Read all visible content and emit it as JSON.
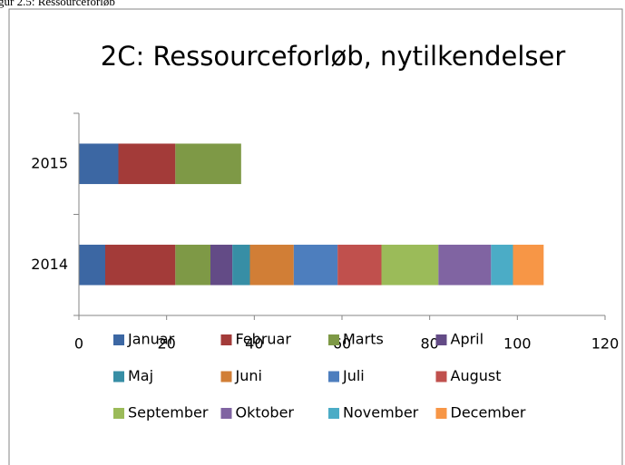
{
  "caption": "gur 2.5: Ressourceforløb",
  "chart_data": {
    "type": "stacked-barh",
    "title": "2C: Ressourceforløb, nytilkendelser",
    "categories": [
      "2014",
      "2015"
    ],
    "series": [
      {
        "name": "Januar",
        "color": "#3c67a3",
        "values": [
          6,
          9
        ]
      },
      {
        "name": "Februar",
        "color": "#a33b39",
        "values": [
          16,
          13
        ]
      },
      {
        "name": "Marts",
        "color": "#7e9946",
        "values": [
          8,
          15
        ]
      },
      {
        "name": "April",
        "color": "#634b86",
        "values": [
          5,
          null
        ]
      },
      {
        "name": "Maj",
        "color": "#378ea5",
        "values": [
          4,
          null
        ]
      },
      {
        "name": "Juni",
        "color": "#d17e36",
        "values": [
          10,
          null
        ]
      },
      {
        "name": "Juli",
        "color": "#4d7ebe",
        "values": [
          10,
          null
        ]
      },
      {
        "name": "August",
        "color": "#c0504d",
        "values": [
          10,
          null
        ]
      },
      {
        "name": "September",
        "color": "#9bbb59",
        "values": [
          13,
          null
        ]
      },
      {
        "name": "Oktober",
        "color": "#8064a2",
        "values": [
          12,
          null
        ]
      },
      {
        "name": "November",
        "color": "#4bacc6",
        "values": [
          5,
          null
        ]
      },
      {
        "name": "December",
        "color": "#f79646",
        "values": [
          7,
          null
        ]
      }
    ],
    "xlim": [
      0,
      120
    ],
    "xticks": [
      0,
      20,
      40,
      60,
      80,
      100,
      120
    ]
  }
}
